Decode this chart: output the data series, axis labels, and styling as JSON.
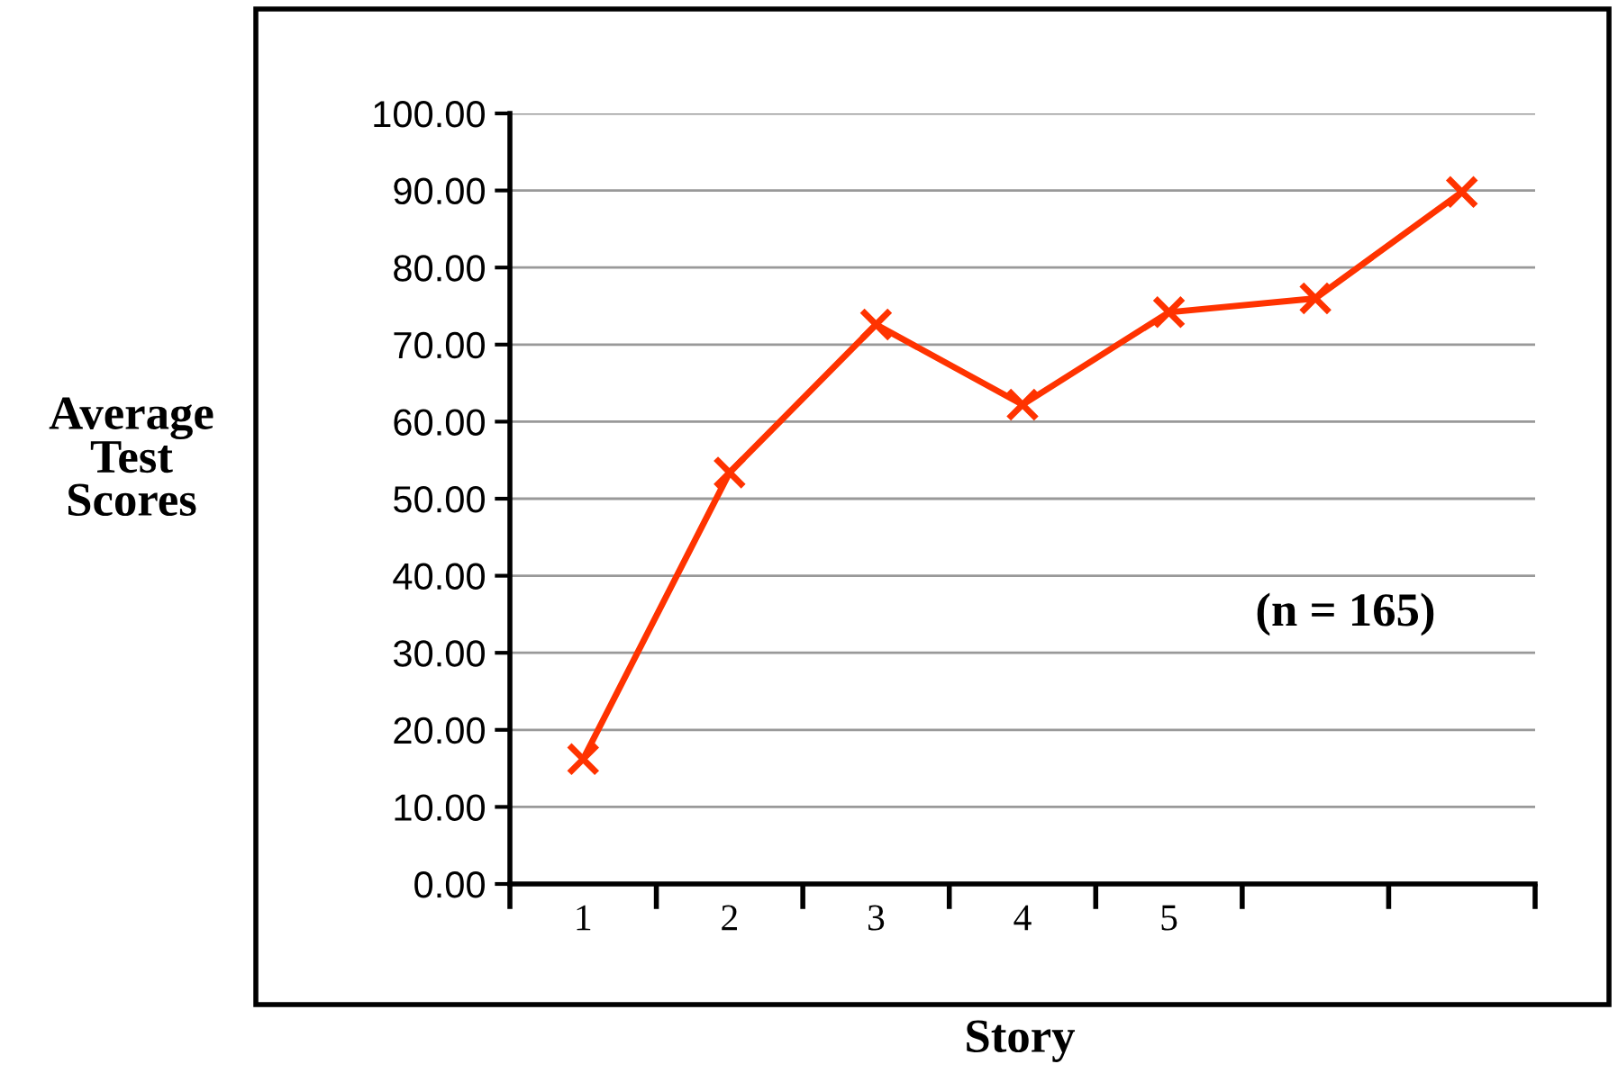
{
  "chart_data": {
    "type": "line",
    "xlabel": "Story",
    "ylabel": "Average\nTest\nScores",
    "categories": [
      "1",
      "2",
      "3",
      "4",
      "5",
      null,
      null
    ],
    "series": [
      {
        "color": "#ff3300",
        "values": [
          16.2,
          53.4,
          72.6,
          62.2,
          74.2,
          76.0,
          89.8
        ]
      }
    ],
    "ylim": [
      0,
      100
    ],
    "yticks": [
      {
        "value": 0,
        "label": "0.00"
      },
      {
        "value": 10,
        "label": "10.00"
      },
      {
        "value": 20,
        "label": "20.00"
      },
      {
        "value": 30,
        "label": "30.00"
      },
      {
        "value": 40,
        "label": "40.00"
      },
      {
        "value": 50,
        "label": "50.00"
      },
      {
        "value": 60,
        "label": "60.00"
      },
      {
        "value": 70,
        "label": "70.00"
      },
      {
        "value": 80,
        "label": "80.00"
      },
      {
        "value": 90,
        "label": "90.00"
      },
      {
        "value": 100,
        "label": "100.00"
      }
    ],
    "grid": "y",
    "marker": "cross",
    "line_style": "solid",
    "annotations": [
      "(n = 165)"
    ]
  }
}
